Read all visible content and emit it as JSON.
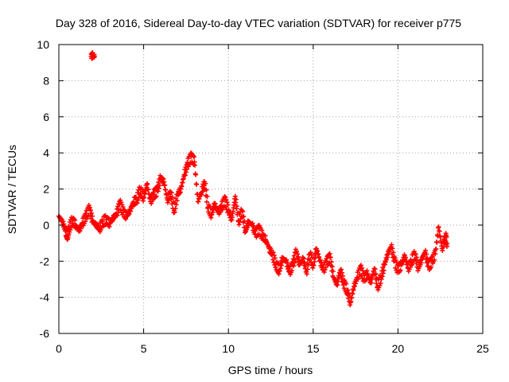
{
  "chart_data": {
    "type": "scatter",
    "title": "Day 328 of 2016, Sidereal Day-to-day VTEC variation (SDTVAR) for receiver p775",
    "xlabel": "GPS time / hours",
    "ylabel": "SDTVAR / TECUs",
    "xlim": [
      0,
      25
    ],
    "ylim": [
      -6,
      10
    ],
    "xticks": [
      "0",
      "5",
      "10",
      "15",
      "20",
      "25"
    ],
    "yticks": [
      "-6",
      "-4",
      "-2",
      "0",
      "2",
      "4",
      "6",
      "8",
      "10"
    ],
    "grid": true,
    "legend": "none",
    "marker": "plus",
    "color": "#ff0000",
    "series": [
      {
        "name": "SDTVAR",
        "points": [
          [
            1.9,
            9.35
          ],
          [
            2.0,
            9.4
          ],
          [
            2.1,
            9.35
          ],
          [
            0.0,
            0.5
          ],
          [
            0.2,
            0.2
          ],
          [
            0.4,
            -0.3
          ],
          [
            0.5,
            -0.6
          ],
          [
            0.6,
            -0.2
          ],
          [
            0.8,
            0.3
          ],
          [
            1.0,
            0.0
          ],
          [
            1.2,
            -0.3
          ],
          [
            1.4,
            0.1
          ],
          [
            1.6,
            0.5
          ],
          [
            1.8,
            0.9
          ],
          [
            2.0,
            0.2
          ],
          [
            2.2,
            0.0
          ],
          [
            2.4,
            -0.2
          ],
          [
            2.6,
            0.2
          ],
          [
            2.8,
            0.3
          ],
          [
            3.0,
            0.1
          ],
          [
            3.2,
            0.4
          ],
          [
            3.4,
            0.6
          ],
          [
            3.6,
            1.2
          ],
          [
            3.8,
            0.7
          ],
          [
            4.0,
            0.5
          ],
          [
            4.2,
            0.8
          ],
          [
            4.4,
            1.3
          ],
          [
            4.6,
            1.4
          ],
          [
            4.8,
            2.0
          ],
          [
            5.0,
            1.5
          ],
          [
            5.2,
            2.3
          ],
          [
            5.4,
            1.3
          ],
          [
            5.6,
            1.7
          ],
          [
            5.8,
            1.9
          ],
          [
            6.0,
            2.6
          ],
          [
            6.2,
            2.4
          ],
          [
            6.4,
            1.4
          ],
          [
            6.6,
            1.8
          ],
          [
            6.8,
            0.8
          ],
          [
            7.0,
            1.7
          ],
          [
            7.2,
            2.0
          ],
          [
            7.4,
            2.8
          ],
          [
            7.6,
            3.4
          ],
          [
            7.8,
            3.8
          ],
          [
            8.0,
            3.5
          ],
          [
            8.2,
            1.3
          ],
          [
            8.4,
            1.8
          ],
          [
            8.6,
            2.4
          ],
          [
            8.8,
            1.0
          ],
          [
            9.0,
            0.6
          ],
          [
            9.2,
            1.2
          ],
          [
            9.4,
            0.7
          ],
          [
            9.6,
            1.0
          ],
          [
            9.8,
            1.4
          ],
          [
            10.0,
            0.8
          ],
          [
            10.2,
            0.3
          ],
          [
            10.4,
            1.6
          ],
          [
            10.6,
            0.2
          ],
          [
            10.8,
            0.8
          ],
          [
            11.0,
            -0.3
          ],
          [
            11.2,
            0.2
          ],
          [
            11.4,
            0.0
          ],
          [
            11.6,
            -0.5
          ],
          [
            11.8,
            -0.2
          ],
          [
            12.0,
            -0.6
          ],
          [
            12.2,
            -0.8
          ],
          [
            12.4,
            -1.3
          ],
          [
            12.6,
            -1.6
          ],
          [
            12.8,
            -2.2
          ],
          [
            13.0,
            -2.5
          ],
          [
            13.2,
            -1.8
          ],
          [
            13.4,
            -2.0
          ],
          [
            13.6,
            -2.6
          ],
          [
            13.8,
            -2.2
          ],
          [
            14.0,
            -1.5
          ],
          [
            14.2,
            -2.2
          ],
          [
            14.4,
            -1.8
          ],
          [
            14.6,
            -2.6
          ],
          [
            14.8,
            -1.6
          ],
          [
            15.0,
            -2.2
          ],
          [
            15.2,
            -1.3
          ],
          [
            15.4,
            -2.0
          ],
          [
            15.6,
            -2.5
          ],
          [
            15.8,
            -2.0
          ],
          [
            16.0,
            -1.8
          ],
          [
            16.2,
            -2.9
          ],
          [
            16.4,
            -3.3
          ],
          [
            16.6,
            -2.5
          ],
          [
            16.8,
            -3.2
          ],
          [
            17.0,
            -3.6
          ],
          [
            17.2,
            -4.3
          ],
          [
            17.4,
            -3.4
          ],
          [
            17.6,
            -2.9
          ],
          [
            17.8,
            -2.4
          ],
          [
            18.0,
            -3.0
          ],
          [
            18.2,
            -2.7
          ],
          [
            18.4,
            -3.2
          ],
          [
            18.6,
            -2.4
          ],
          [
            18.8,
            -3.4
          ],
          [
            19.0,
            -2.9
          ],
          [
            19.2,
            -2.2
          ],
          [
            19.4,
            -1.6
          ],
          [
            19.6,
            -1.2
          ],
          [
            19.8,
            -2.0
          ],
          [
            20.0,
            -2.5
          ],
          [
            20.2,
            -2.2
          ],
          [
            20.4,
            -1.7
          ],
          [
            20.6,
            -2.4
          ],
          [
            20.8,
            -2.0
          ],
          [
            21.0,
            -1.6
          ],
          [
            21.2,
            -2.4
          ],
          [
            21.4,
            -1.9
          ],
          [
            21.6,
            -1.5
          ],
          [
            21.8,
            -2.3
          ],
          [
            22.0,
            -2.0
          ],
          [
            22.2,
            -1.6
          ],
          [
            22.4,
            -0.1
          ],
          [
            22.6,
            -1.3
          ],
          [
            22.8,
            -0.6
          ],
          [
            22.9,
            -1.0
          ]
        ]
      }
    ]
  }
}
